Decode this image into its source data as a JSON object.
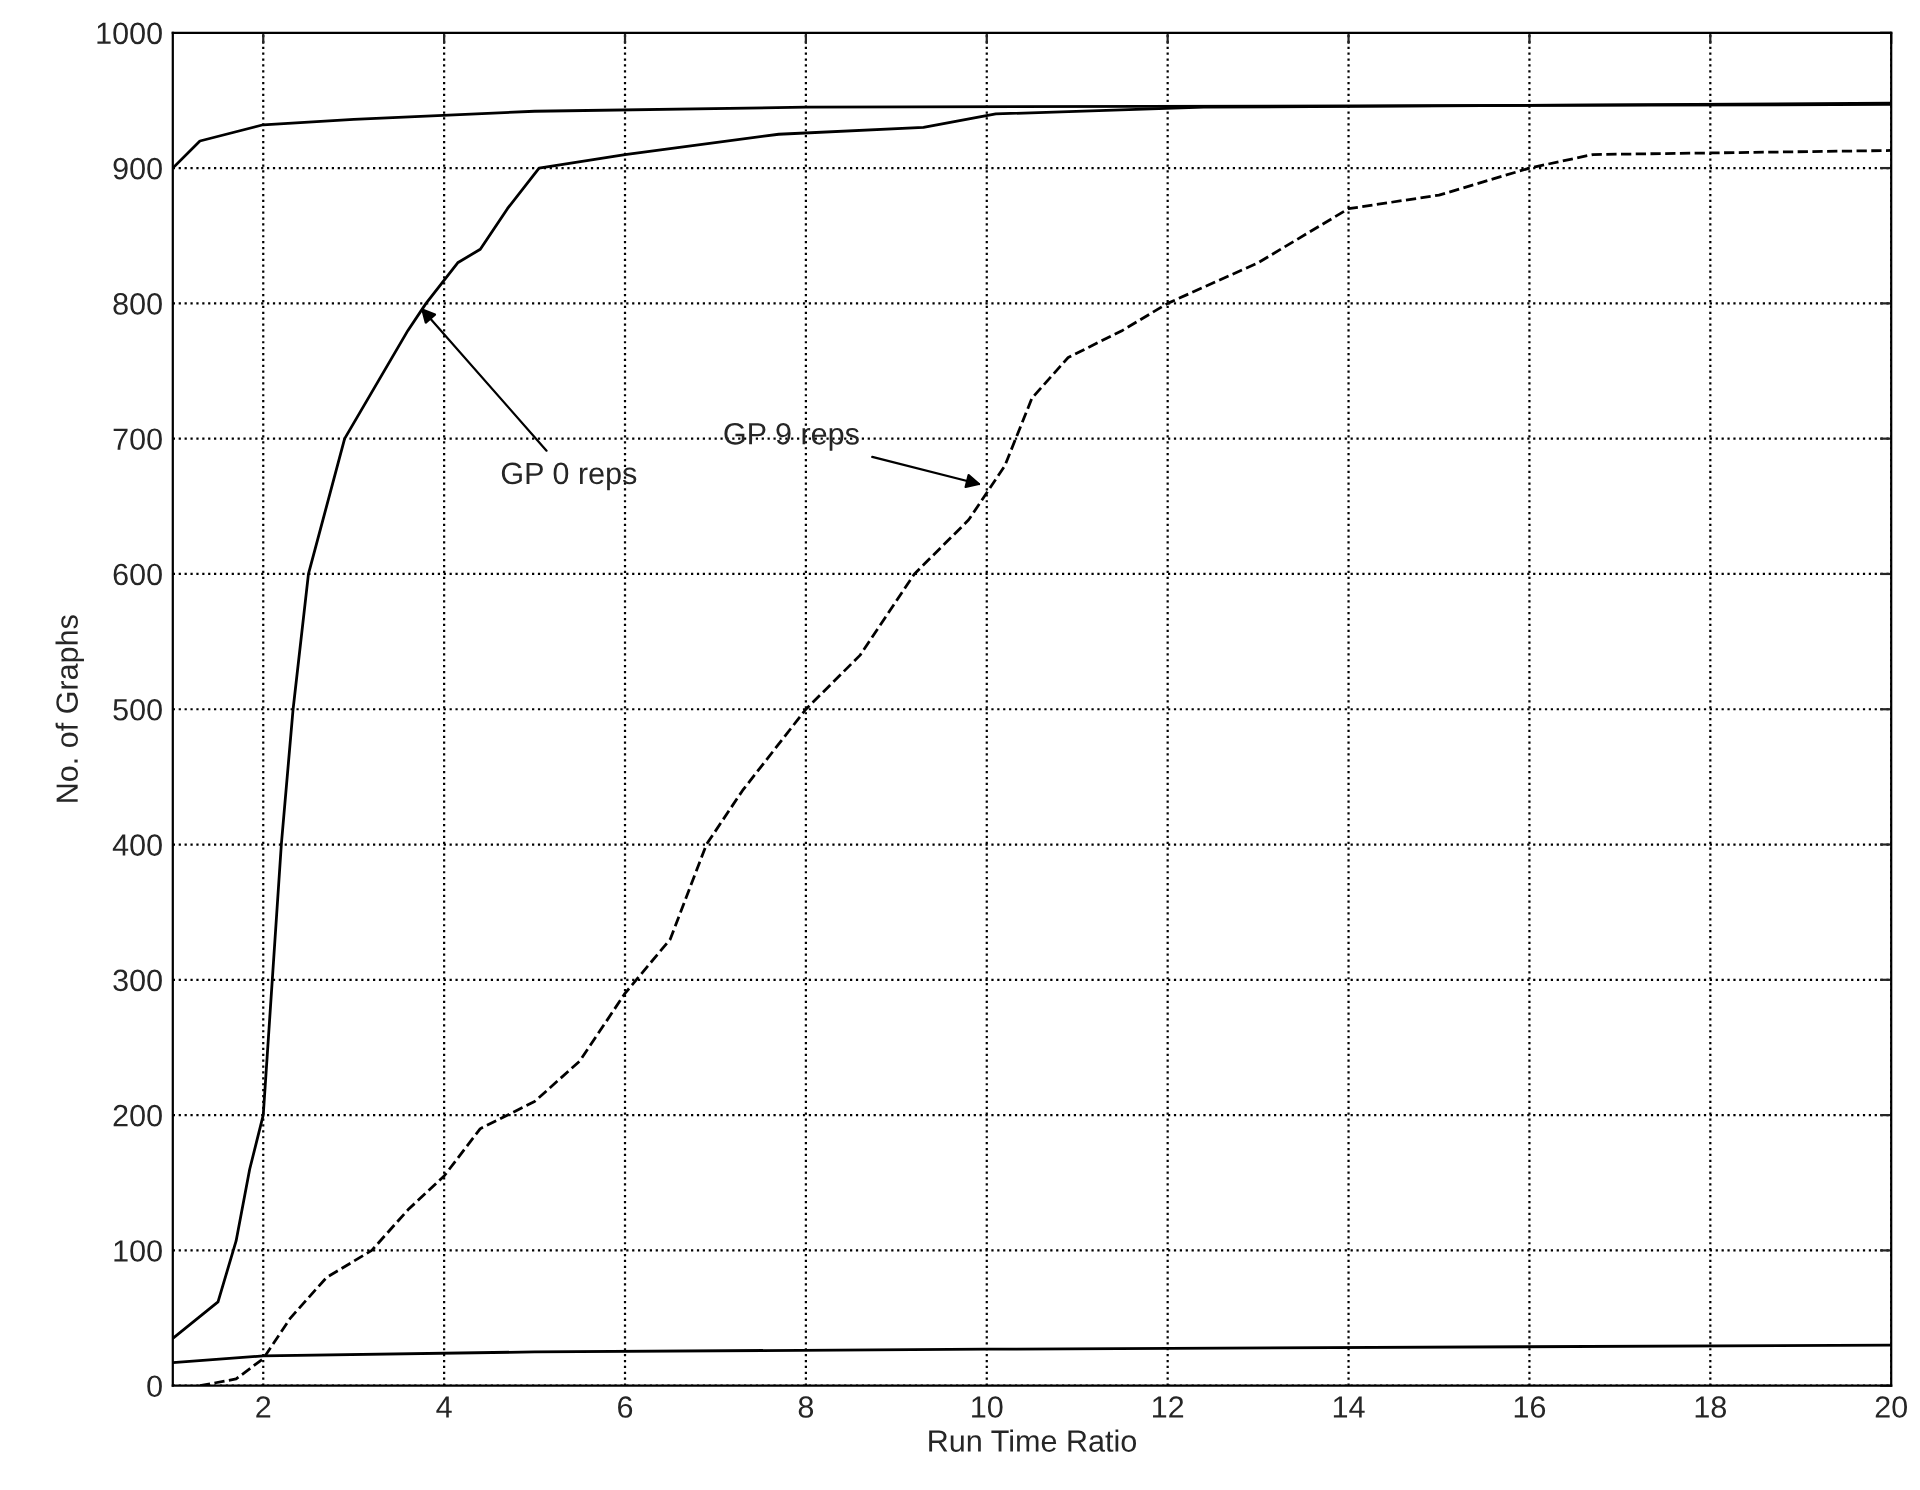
{
  "chart_data": {
    "type": "line",
    "xlabel": "Run Time Ratio",
    "ylabel": "No. of Graphs",
    "xlim": [
      1,
      20
    ],
    "ylim": [
      0,
      1000
    ],
    "xticks": [
      2,
      4,
      6,
      8,
      10,
      12,
      14,
      16,
      18,
      20
    ],
    "yticks": [
      0,
      100,
      200,
      300,
      400,
      500,
      600,
      700,
      800,
      900,
      1000
    ],
    "grid": true,
    "line_style": "solid",
    "series": [
      {
        "color": "#000000",
        "x": [
          1,
          1.5,
          1.7,
          1.85,
          2.0,
          2.1,
          2.2,
          2.33,
          2.5,
          2.9,
          3.6,
          3.8,
          4.15,
          4.4,
          4.7,
          5.05,
          6.0,
          7.7,
          9.3,
          10.1,
          12.4,
          20
        ],
        "values": [
          35,
          62,
          107,
          160,
          200,
          300,
          400,
          500,
          600,
          700,
          780,
          800,
          830,
          840,
          870,
          900,
          910,
          925,
          930,
          940,
          945,
          948
        ]
      },
      {
        "color": "#000000",
        "line_style": "dashed",
        "x": [
          1.3,
          1.7,
          2.0,
          2.3,
          2.7,
          3.2,
          3.6,
          4,
          4.4,
          5,
          5.5,
          6,
          6.5,
          6.9,
          7.3,
          8,
          8.6,
          9.2,
          9.8,
          10.2,
          10.5,
          10.9,
          11.5,
          12,
          13,
          14,
          15,
          16,
          16.7,
          20
        ],
        "values": [
          0,
          5,
          20,
          50,
          80,
          100,
          130,
          155,
          190,
          210,
          240,
          290,
          330,
          400,
          440,
          500,
          540,
          600,
          640,
          680,
          730,
          760,
          780,
          800,
          830,
          870,
          880,
          900,
          910,
          913
        ]
      },
      {
        "color": "#000000",
        "x": [
          1,
          1.3,
          2,
          3,
          5,
          8,
          20
        ],
        "values": [
          900,
          920,
          932,
          936,
          942,
          945,
          947
        ]
      },
      {
        "color": "#000000",
        "x": [
          1,
          2,
          5,
          10,
          20
        ],
        "values": [
          17,
          22,
          25,
          27,
          30
        ]
      }
    ],
    "annotations": [
      {
        "text": "GP 0 reps",
        "x": 3.7,
        "y": 800
      },
      {
        "text": "GP 9 reps",
        "x": 10,
        "y": 665
      }
    ]
  }
}
